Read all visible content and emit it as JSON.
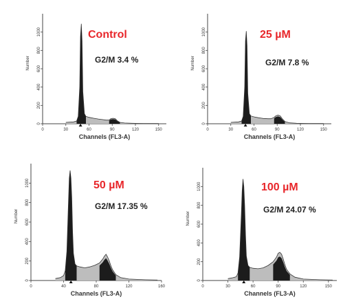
{
  "chart_data": [
    {
      "type": "area",
      "title": "Control",
      "annotation": "G2/M 3.4 %",
      "xlabel": "Channels (FL3-A)",
      "ylabel": "Number",
      "xlim": [
        0,
        160
      ],
      "ylim": [
        0,
        1200
      ],
      "xticks": [
        "0",
        "30",
        "60",
        "90",
        "120",
        "150"
      ],
      "yticks": [
        "0",
        "200",
        "400",
        "600",
        "800",
        "1000"
      ],
      "series": [
        {
          "x": [
            30,
            40,
            44,
            46,
            48,
            49,
            50,
            51,
            52,
            54,
            56,
            60,
            66,
            72,
            78,
            82,
            86,
            88,
            91,
            94,
            97,
            100,
            106,
            115,
            130,
            150
          ],
          "values": [
            15,
            20,
            30,
            80,
            400,
            950,
            1090,
            900,
            350,
            110,
            80,
            70,
            60,
            52,
            45,
            40,
            40,
            55,
            60,
            55,
            30,
            15,
            8,
            5,
            3,
            2
          ]
        }
      ]
    },
    {
      "type": "area",
      "title": "25 µM",
      "annotation": "G2/M 7.8 %",
      "xlabel": "Channels (FL3-A)",
      "ylabel": "Number",
      "xlim": [
        0,
        160
      ],
      "ylim": [
        0,
        1200
      ],
      "xticks": [
        "0",
        "30",
        "60",
        "90",
        "120",
        "150"
      ],
      "yticks": [
        "0",
        "200",
        "400",
        "600",
        "800",
        "1000"
      ],
      "series": [
        {
          "x": [
            30,
            40,
            44,
            46,
            48,
            49,
            50,
            51,
            52,
            54,
            56,
            60,
            66,
            72,
            78,
            82,
            86,
            88,
            91,
            94,
            97,
            100,
            106,
            115,
            130,
            150
          ],
          "values": [
            15,
            20,
            30,
            80,
            400,
            900,
            1010,
            850,
            330,
            110,
            85,
            75,
            65,
            58,
            55,
            55,
            70,
            85,
            95,
            85,
            50,
            25,
            10,
            5,
            3,
            2
          ]
        }
      ]
    },
    {
      "type": "area",
      "title": "50 µM",
      "annotation": "G2/M  17.35 %",
      "xlabel": "Channels (FL3-A)",
      "ylabel": "Number",
      "xlim": [
        0,
        160
      ],
      "ylim": [
        0,
        1200
      ],
      "xticks": [
        "0",
        "40",
        "80",
        "120",
        "160"
      ],
      "yticks": [
        "0",
        "200",
        "400",
        "600",
        "800",
        "1000"
      ],
      "series": [
        {
          "x": [
            30,
            36,
            40,
            42,
            44,
            46,
            47,
            48,
            49,
            50,
            51,
            52,
            54,
            56,
            60,
            66,
            72,
            78,
            84,
            88,
            90,
            92,
            94,
            96,
            98,
            100,
            104,
            110,
            120,
            140,
            155
          ],
          "values": [
            20,
            30,
            50,
            100,
            300,
            800,
            1050,
            1130,
            1050,
            850,
            500,
            280,
            170,
            150,
            140,
            130,
            140,
            155,
            180,
            220,
            250,
            270,
            240,
            200,
            150,
            110,
            60,
            30,
            15,
            8,
            5
          ]
        }
      ]
    },
    {
      "type": "area",
      "title": "100 µM",
      "annotation": "G2/M 24.07 %",
      "xlabel": "Channels (FL3-A)",
      "ylabel": "Number",
      "xlim": [
        0,
        160
      ],
      "ylim": [
        0,
        1200
      ],
      "xticks": [
        "0",
        "30",
        "60",
        "90",
        "120",
        "150"
      ],
      "yticks": [
        "0",
        "200",
        "400",
        "600",
        "800",
        "1000"
      ],
      "series": [
        {
          "x": [
            30,
            36,
            40,
            42,
            44,
            46,
            47,
            48,
            49,
            50,
            51,
            52,
            54,
            56,
            60,
            66,
            72,
            78,
            84,
            88,
            90,
            92,
            94,
            96,
            98,
            100,
            104,
            110,
            120,
            140,
            155
          ],
          "values": [
            20,
            30,
            40,
            80,
            250,
            700,
            950,
            1080,
            1000,
            800,
            480,
            260,
            160,
            140,
            130,
            125,
            135,
            160,
            200,
            250,
            290,
            300,
            280,
            230,
            170,
            120,
            70,
            35,
            15,
            8,
            5
          ]
        }
      ]
    }
  ]
}
